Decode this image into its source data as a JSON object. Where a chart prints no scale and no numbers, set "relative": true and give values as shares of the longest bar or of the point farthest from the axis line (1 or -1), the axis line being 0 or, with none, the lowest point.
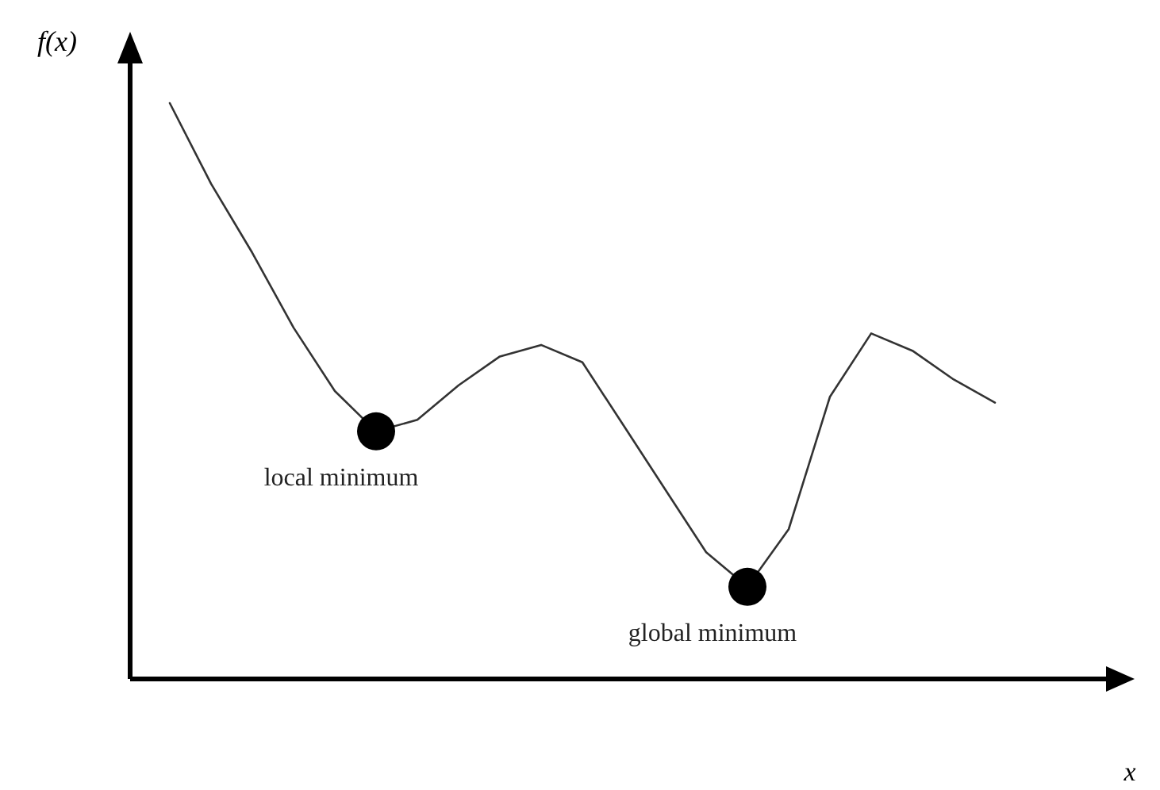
{
  "chart_data": {
    "type": "line",
    "relative": true,
    "xlabel": "x",
    "ylabel": "f(x)",
    "categories": [
      null,
      null,
      null,
      null,
      null,
      null,
      null,
      null,
      null,
      null,
      null,
      null,
      null,
      null,
      null,
      null,
      null,
      null,
      null,
      null,
      null
    ],
    "series": [
      {
        "color": "#333333",
        "values": [
          1.0,
          0.86,
          0.74,
          0.61,
          0.5,
          0.43,
          0.45,
          0.51,
          0.56,
          0.58,
          0.55,
          0.44,
          0.33,
          0.22,
          0.16,
          0.26,
          0.49,
          0.6,
          0.57,
          0.52,
          0.48
        ]
      }
    ],
    "annotations": [
      "local minimum",
      "global minimum"
    ]
  }
}
